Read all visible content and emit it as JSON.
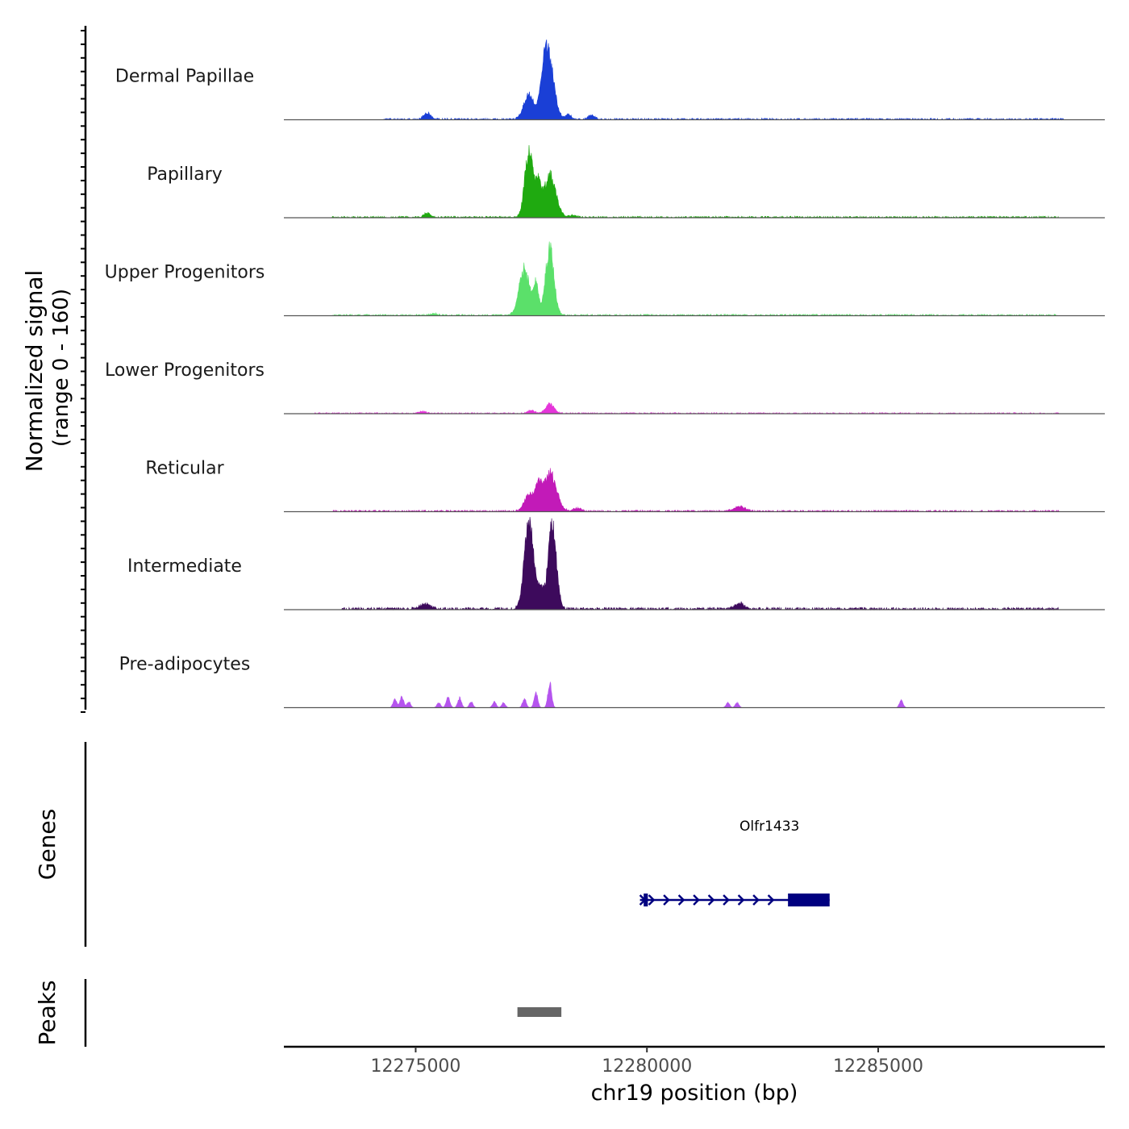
{
  "chart_data": {
    "type": "area",
    "title": "",
    "ylabel_line1": "Normalized signal",
    "ylabel_line2": "(range 0 - 160)",
    "ylim": [
      0,
      160
    ],
    "xlabel": "chr19 position (bp)",
    "xlim": [
      12272150,
      12289900
    ],
    "xticks": [
      12275000,
      12280000,
      12285000
    ],
    "xtick_labels": [
      "12275000",
      "12280000",
      "12285000"
    ],
    "series": [
      {
        "name": "Dermal Papillae",
        "color": "#1a3fd6",
        "peaks": [
          [
            12275250,
            12,
            80
          ],
          [
            12277450,
            52,
            110
          ],
          [
            12277700,
            28,
            60
          ],
          [
            12277900,
            105,
            110
          ],
          [
            12277800,
            70,
            70
          ],
          [
            12278300,
            10,
            60
          ],
          [
            12278800,
            8,
            70
          ]
        ],
        "noise": [
          [
            12274300,
            12289000,
            2
          ]
        ]
      },
      {
        "name": "Papillary",
        "color": "#1faa10",
        "peaks": [
          [
            12275250,
            9,
            70
          ],
          [
            12277450,
            135,
            90
          ],
          [
            12277650,
            60,
            60
          ],
          [
            12277900,
            85,
            130
          ],
          [
            12278400,
            4,
            80
          ]
        ],
        "noise": [
          [
            12273200,
            12288900,
            2
          ]
        ]
      },
      {
        "name": "Upper Progenitors",
        "color": "#5be06a",
        "peaks": [
          [
            12277350,
            95,
            110
          ],
          [
            12277600,
            60,
            60
          ],
          [
            12277900,
            140,
            90
          ],
          [
            12275400,
            3,
            80
          ]
        ],
        "noise": [
          [
            12273200,
            12288900,
            2
          ]
        ]
      },
      {
        "name": "Lower Progenitors",
        "color": "#e535d9",
        "peaks": [
          [
            12277900,
            20,
            90
          ],
          [
            12277500,
            6,
            80
          ],
          [
            12275150,
            4,
            70
          ]
        ],
        "noise": [
          [
            12272800,
            12288900,
            1.5
          ]
        ]
      },
      {
        "name": "Reticular",
        "color": "#c21ab8",
        "peaks": [
          [
            12277450,
            35,
            100
          ],
          [
            12277900,
            80,
            140
          ],
          [
            12277650,
            40,
            70
          ],
          [
            12278500,
            6,
            90
          ],
          [
            12282000,
            10,
            120
          ]
        ],
        "noise": [
          [
            12273200,
            12288900,
            2
          ]
        ]
      },
      {
        "name": "Intermediate",
        "color": "#3d0a5c",
        "peaks": [
          [
            12277450,
            185,
            100
          ],
          [
            12277950,
            175,
            90
          ],
          [
            12277700,
            40,
            60
          ],
          [
            12275200,
            10,
            120
          ],
          [
            12282000,
            12,
            100
          ]
        ],
        "noise": [
          [
            12273400,
            12288900,
            3
          ]
        ]
      },
      {
        "name": "Pre-adipocytes",
        "color": "#b554ee",
        "peaks": [
          [
            12274550,
            18,
            40
          ],
          [
            12274700,
            22,
            40
          ],
          [
            12274850,
            12,
            40
          ],
          [
            12275500,
            10,
            40
          ],
          [
            12275700,
            22,
            40
          ],
          [
            12275950,
            20,
            40
          ],
          [
            12276200,
            12,
            40
          ],
          [
            12276700,
            12,
            40
          ],
          [
            12276900,
            10,
            40
          ],
          [
            12277350,
            18,
            40
          ],
          [
            12277600,
            30,
            40
          ],
          [
            12277900,
            52,
            40
          ],
          [
            12281750,
            10,
            40
          ],
          [
            12281950,
            10,
            40
          ],
          [
            12285500,
            15,
            40
          ]
        ],
        "noise": []
      }
    ],
    "genes": [
      {
        "name": "Olfr1433",
        "start": 12279850,
        "end": 12283950,
        "strand": "+",
        "exons": [
          [
            12279930,
            12280020
          ],
          [
            12283050,
            12283950
          ]
        ],
        "color": "#000080"
      }
    ],
    "peaks_track": [
      {
        "start": 12277200,
        "end": 12278150,
        "color": "#666666"
      }
    ]
  },
  "panels": {
    "genes_label": "Genes",
    "peaks_label": "Peaks"
  }
}
